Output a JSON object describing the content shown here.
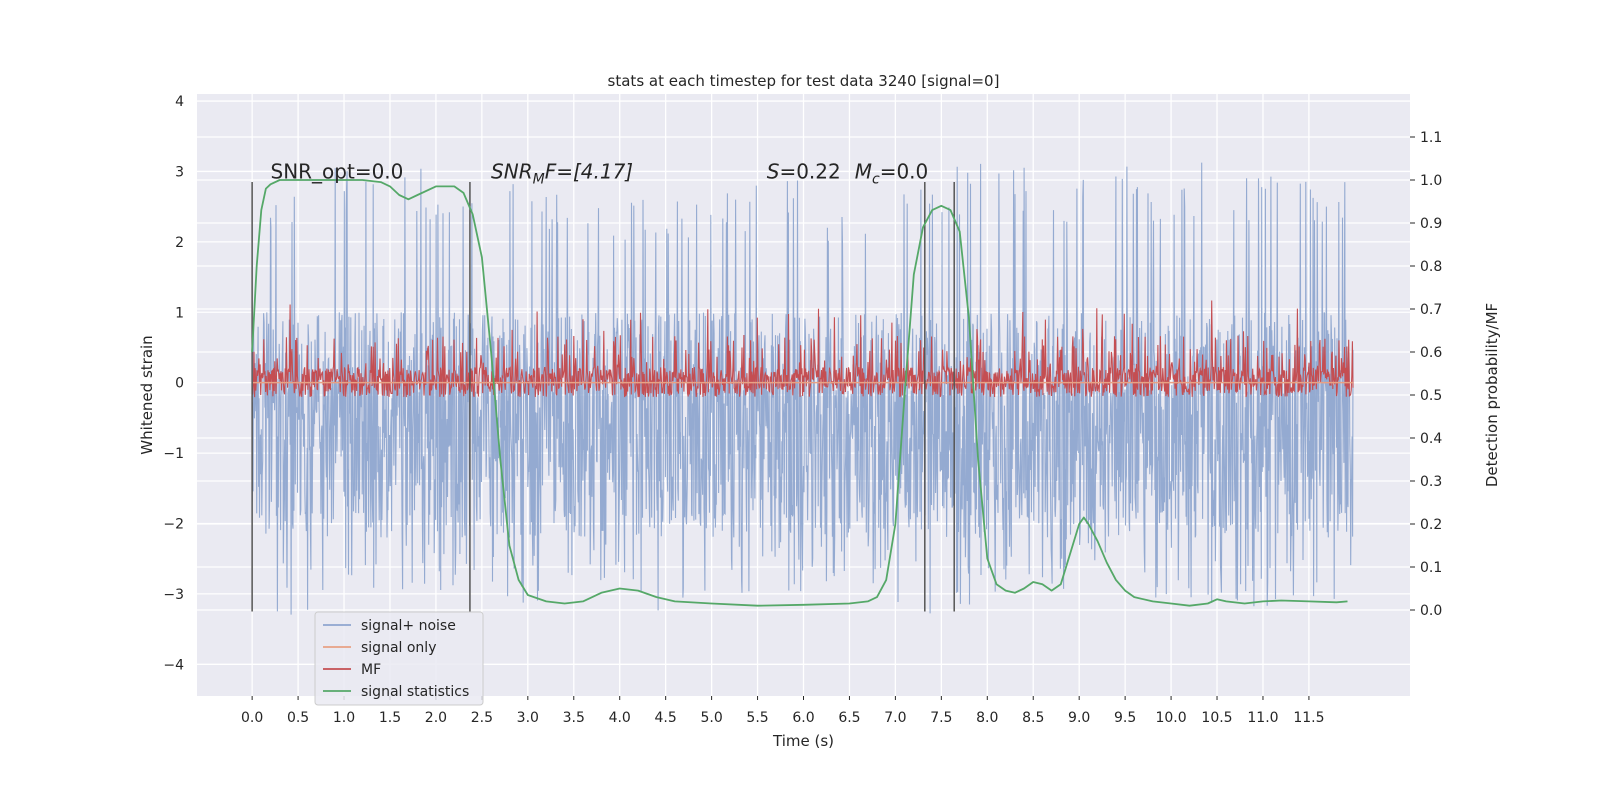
{
  "chart_data": {
    "type": "line",
    "title": "stats at each timestep for test data 3240 [signal=0]",
    "xlabel": "Time (s)",
    "ylabel": "Whitened strain",
    "y2label": "Detection probability/MF",
    "xlim": [
      -0.6,
      12.6
    ],
    "ylim": [
      -4.45,
      4.1
    ],
    "y2lim": [
      -0.2,
      1.2
    ],
    "xticks": [
      0.0,
      0.5,
      1.0,
      1.5,
      2.0,
      2.5,
      3.0,
      3.5,
      4.0,
      4.5,
      5.0,
      5.5,
      6.0,
      6.5,
      7.0,
      7.5,
      8.0,
      8.5,
      9.0,
      9.5,
      10.0,
      10.5,
      11.0,
      11.5
    ],
    "xtick_labels": [
      "0.0",
      "0.5",
      "1.0",
      "1.5",
      "2.0",
      "2.5",
      "3.0",
      "3.5",
      "4.0",
      "4.5",
      "5.0",
      "5.5",
      "6.0",
      "6.5",
      "7.0",
      "7.5",
      "8.0",
      "8.5",
      "9.0",
      "9.5",
      "10.0",
      "10.5",
      "11.0",
      "11.5"
    ],
    "yticks": [
      4,
      3,
      2,
      1,
      0,
      -1,
      -2,
      -3,
      -4
    ],
    "ytick_labels": [
      "4",
      "3",
      "2",
      "1",
      "0",
      "−1",
      "−2",
      "−3",
      "−4"
    ],
    "y2ticks": [
      0.0,
      0.1,
      0.2,
      0.3,
      0.4,
      0.5,
      0.6,
      0.7,
      0.8,
      0.9,
      1.0,
      1.1
    ],
    "y2tick_labels": [
      "0.0",
      "0.1",
      "0.2",
      "0.3",
      "0.4",
      "0.5",
      "0.6",
      "0.7",
      "0.8",
      "0.9",
      "1.0",
      "1.1"
    ],
    "grid": true,
    "background": "#eaeaf2",
    "legend_position": "lower-left",
    "annotations": {
      "snr_opt": "SNR_opt=0.0",
      "snr_mf_base": "SNR",
      "snr_mf_sub": "M",
      "snr_mf_rest": "F=[4.17]",
      "s_label": "S",
      "s_value": "=0.22",
      "mc_label": "M",
      "mc_sub": "c",
      "mc_value": "=0.0"
    },
    "vlines": [
      0.0,
      2.37,
      7.32,
      7.64
    ],
    "series": [
      {
        "name": "signal+ noise",
        "axis": "left",
        "color": "#8fa6cf",
        "style": "dense-noise",
        "x_range": [
          0.0,
          11.98
        ],
        "envelope": {
          "x": [
            0.0,
            0.5,
            1.0,
            1.5,
            2.0,
            2.5,
            3.0,
            3.5,
            4.0,
            4.5,
            5.0,
            5.5,
            6.0,
            6.5,
            7.0,
            7.5,
            8.0,
            8.5,
            9.0,
            9.5,
            10.0,
            10.5,
            11.0,
            11.5,
            11.98
          ],
          "upper": [
            2.6,
            2.9,
            3.2,
            3.2,
            3.0,
            3.1,
            2.7,
            2.8,
            2.6,
            2.7,
            2.8,
            2.8,
            2.9,
            2.5,
            2.9,
            3.0,
            3.4,
            3.0,
            3.0,
            3.1,
            3.0,
            3.2,
            3.0,
            3.0,
            2.9
          ],
          "lower": [
            -3.1,
            -3.4,
            -3.0,
            -3.1,
            -3.0,
            -3.0,
            -3.2,
            -3.1,
            -2.9,
            -3.6,
            -3.0,
            -3.0,
            -3.0,
            -3.1,
            -3.1,
            -3.5,
            -3.1,
            -2.8,
            -3.0,
            -3.0,
            -3.1,
            -3.2,
            -3.5,
            -3.3,
            -3.3
          ]
        },
        "baseline_band": [
          1.0,
          -2.2
        ]
      },
      {
        "name": "signal only",
        "axis": "left",
        "color": "#e8a184",
        "x": [
          0.0,
          11.98
        ],
        "y": [
          0.0,
          0.0
        ]
      },
      {
        "name": "MF",
        "axis": "right",
        "color": "#c44e52",
        "style": "dense-noise",
        "x_range": [
          0.0,
          11.98
        ],
        "base": 0.53,
        "typical_upper": 0.64,
        "max": 0.73
      },
      {
        "name": "signal statistics",
        "axis": "right",
        "color": "#55a868",
        "x": [
          0.0,
          0.05,
          0.1,
          0.15,
          0.2,
          0.3,
          0.5,
          0.8,
          1.0,
          1.2,
          1.4,
          1.5,
          1.6,
          1.7,
          1.8,
          2.0,
          2.2,
          2.3,
          2.4,
          2.5,
          2.6,
          2.7,
          2.8,
          2.9,
          3.0,
          3.2,
          3.4,
          3.6,
          3.8,
          4.0,
          4.2,
          4.4,
          4.6,
          5.0,
          5.5,
          6.0,
          6.5,
          6.7,
          6.8,
          6.9,
          7.0,
          7.1,
          7.2,
          7.3,
          7.4,
          7.5,
          7.6,
          7.7,
          7.8,
          7.9,
          8.0,
          8.1,
          8.2,
          8.3,
          8.4,
          8.5,
          8.6,
          8.7,
          8.8,
          8.9,
          9.0,
          9.05,
          9.1,
          9.2,
          9.3,
          9.4,
          9.5,
          9.6,
          9.8,
          10.0,
          10.2,
          10.4,
          10.5,
          10.6,
          10.8,
          11.0,
          11.2,
          11.5,
          11.8,
          11.92
        ],
        "y": [
          0.6,
          0.8,
          0.93,
          0.98,
          0.99,
          1.0,
          1.0,
          1.0,
          1.0,
          1.0,
          0.995,
          0.985,
          0.965,
          0.955,
          0.965,
          0.985,
          0.985,
          0.97,
          0.92,
          0.82,
          0.6,
          0.35,
          0.15,
          0.07,
          0.035,
          0.02,
          0.015,
          0.02,
          0.04,
          0.05,
          0.045,
          0.03,
          0.02,
          0.015,
          0.01,
          0.012,
          0.015,
          0.02,
          0.03,
          0.07,
          0.2,
          0.5,
          0.78,
          0.89,
          0.93,
          0.94,
          0.93,
          0.88,
          0.68,
          0.35,
          0.12,
          0.06,
          0.045,
          0.04,
          0.05,
          0.065,
          0.06,
          0.045,
          0.06,
          0.13,
          0.2,
          0.215,
          0.2,
          0.16,
          0.11,
          0.07,
          0.045,
          0.03,
          0.02,
          0.015,
          0.01,
          0.015,
          0.025,
          0.02,
          0.015,
          0.02,
          0.022,
          0.02,
          0.018,
          0.02
        ]
      }
    ]
  }
}
